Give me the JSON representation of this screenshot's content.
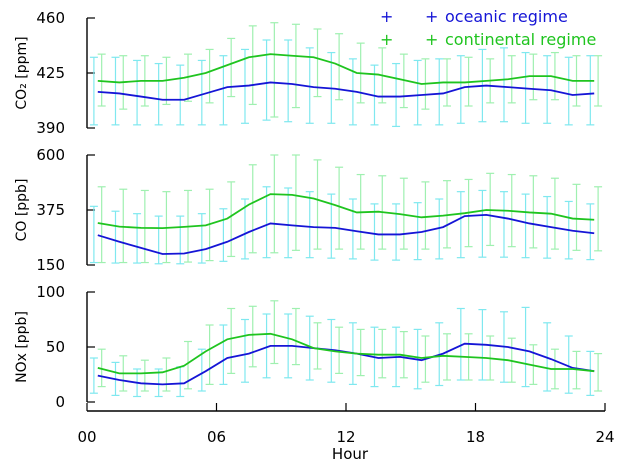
{
  "colors": {
    "oceanic": "#1515d6",
    "continental": "#1fc41f",
    "oceanic_err": "#7fe8ef",
    "continental_err": "#9ff0b0"
  },
  "legend": {
    "oceanic": "oceanic regime",
    "continental": "continental regime"
  },
  "chart_data": [
    {
      "type": "line",
      "ylabel": "CO₂ [ppm]",
      "ylim": [
        390,
        460
      ],
      "yticks": [
        390,
        425,
        460
      ],
      "ytick_labels": [
        "390",
        "425",
        "460"
      ],
      "x": [
        0.5,
        1.5,
        2.5,
        3.5,
        4.5,
        5.5,
        6.5,
        7.5,
        8.5,
        9.5,
        10.5,
        11.5,
        12.5,
        13.5,
        14.5,
        15.5,
        16.5,
        17.5,
        18.5,
        19.5,
        20.5,
        21.5,
        22.5,
        23.5
      ],
      "series": [
        {
          "name": "oceanic regime",
          "values": [
            413,
            412,
            410,
            408,
            408,
            412,
            416,
            417,
            419,
            418,
            416,
            415,
            413,
            410,
            410,
            411,
            412,
            416,
            417,
            416,
            415,
            414,
            411,
            412
          ],
          "err_low": [
            392,
            392,
            392,
            392,
            392,
            392,
            392,
            393,
            395,
            394,
            393,
            393,
            392,
            392,
            391,
            392,
            392,
            393,
            394,
            394,
            393,
            393,
            392,
            392
          ],
          "err_high": [
            435,
            435,
            433,
            431,
            430,
            433,
            436,
            440,
            446,
            446,
            441,
            438,
            434,
            430,
            431,
            433,
            434,
            436,
            440,
            441,
            438,
            436,
            435,
            436
          ]
        },
        {
          "name": "continental regime",
          "values": [
            420,
            419,
            420,
            420,
            422,
            425,
            430,
            435,
            437,
            436,
            435,
            431,
            425,
            424,
            421,
            418,
            419,
            419,
            420,
            421,
            423,
            423,
            420,
            420
          ],
          "err_low": [
            404,
            402,
            404,
            405,
            407,
            406,
            410,
            405,
            397,
            403,
            410,
            408,
            406,
            406,
            403,
            402,
            404,
            404,
            406,
            406,
            408,
            408,
            404,
            404
          ],
          "err_high": [
            437,
            436,
            436,
            435,
            437,
            440,
            447,
            455,
            457,
            456,
            453,
            450,
            444,
            441,
            437,
            434,
            434,
            435,
            434,
            436,
            437,
            438,
            436,
            436
          ]
        }
      ]
    },
    {
      "type": "line",
      "ylabel": "CO [ppb]",
      "ylim": [
        150,
        600
      ],
      "yticks": [
        150,
        375,
        600
      ],
      "ytick_labels": [
        "150",
        "375",
        "600"
      ],
      "x": [
        0.5,
        1.5,
        2.5,
        3.5,
        4.5,
        5.5,
        6.5,
        7.5,
        8.5,
        9.5,
        10.5,
        11.5,
        12.5,
        13.5,
        14.5,
        15.5,
        16.5,
        17.5,
        18.5,
        19.5,
        20.5,
        21.5,
        22.5,
        23.5
      ],
      "series": [
        {
          "name": "oceanic regime",
          "values": [
            272,
            245,
            220,
            195,
            197,
            215,
            245,
            285,
            320,
            312,
            305,
            302,
            288,
            275,
            275,
            285,
            305,
            350,
            355,
            340,
            320,
            305,
            290,
            280
          ],
          "err_low": [
            160,
            158,
            158,
            155,
            155,
            158,
            165,
            175,
            180,
            180,
            180,
            178,
            175,
            170,
            170,
            172,
            175,
            180,
            182,
            182,
            180,
            178,
            175,
            172
          ],
          "err_high": [
            390,
            370,
            360,
            350,
            350,
            360,
            380,
            420,
            470,
            465,
            450,
            440,
            420,
            400,
            400,
            405,
            420,
            450,
            455,
            450,
            440,
            430,
            410,
            400
          ]
        },
        {
          "name": "continental regime",
          "values": [
            322,
            307,
            302,
            301,
            306,
            312,
            340,
            397,
            440,
            437,
            422,
            395,
            365,
            368,
            358,
            345,
            352,
            362,
            375,
            372,
            365,
            360,
            340,
            335
          ],
          "err_low": [
            160,
            160,
            160,
            160,
            162,
            168,
            185,
            200,
            200,
            210,
            215,
            215,
            215,
            215,
            215,
            215,
            220,
            225,
            230,
            225,
            220,
            215,
            210,
            208
          ],
          "err_high": [
            470,
            460,
            455,
            450,
            455,
            460,
            490,
            560,
            600,
            600,
            580,
            550,
            520,
            515,
            505,
            490,
            495,
            500,
            525,
            520,
            515,
            505,
            480,
            470
          ]
        }
      ]
    },
    {
      "type": "line",
      "ylabel": "NOx [ppb]",
      "ylim": [
        0,
        100
      ],
      "yticks": [
        0,
        50,
        100
      ],
      "ytick_labels": [
        "0",
        "50",
        "100"
      ],
      "x": [
        0.5,
        1.5,
        2.5,
        3.5,
        4.5,
        5.5,
        6.5,
        7.5,
        8.5,
        9.5,
        10.5,
        11.5,
        12.5,
        13.5,
        14.5,
        15.5,
        16.5,
        17.5,
        18.5,
        19.5,
        20.5,
        21.5,
        22.5,
        23.5
      ],
      "series": [
        {
          "name": "oceanic regime",
          "values": [
            24,
            20,
            17,
            16,
            17,
            28,
            40,
            44,
            51,
            51,
            49,
            47,
            44,
            40,
            41,
            38,
            44,
            53,
            52,
            50,
            46,
            39,
            31,
            28
          ],
          "err_low": [
            8,
            6,
            5,
            5,
            5,
            10,
            16,
            18,
            22,
            22,
            20,
            18,
            16,
            14,
            14,
            12,
            15,
            20,
            20,
            18,
            14,
            10,
            8,
            6
          ],
          "err_high": [
            40,
            36,
            30,
            30,
            32,
            48,
            70,
            75,
            80,
            80,
            78,
            75,
            72,
            68,
            68,
            66,
            72,
            85,
            84,
            82,
            86,
            72,
            60,
            46
          ]
        },
        {
          "name": "continental regime",
          "values": [
            31,
            26,
            26,
            27,
            33,
            46,
            57,
            61,
            62,
            57,
            49,
            46,
            44,
            43,
            43,
            40,
            42,
            41,
            40,
            38,
            34,
            30,
            30,
            28
          ],
          "err_low": [
            14,
            10,
            10,
            10,
            12,
            16,
            26,
            32,
            35,
            34,
            30,
            26,
            24,
            22,
            22,
            18,
            20,
            20,
            20,
            18,
            16,
            12,
            12,
            10
          ],
          "err_high": [
            48,
            42,
            38,
            40,
            55,
            70,
            85,
            87,
            92,
            85,
            72,
            68,
            66,
            66,
            64,
            60,
            62,
            62,
            60,
            58,
            52,
            48,
            46,
            44
          ]
        }
      ]
    }
  ],
  "xaxis": {
    "label": "Hour",
    "xlim": [
      0,
      24
    ],
    "ticks": [
      0,
      6,
      12,
      18,
      24
    ],
    "tick_labels": [
      "00",
      "06",
      "12",
      "18",
      "24"
    ]
  }
}
